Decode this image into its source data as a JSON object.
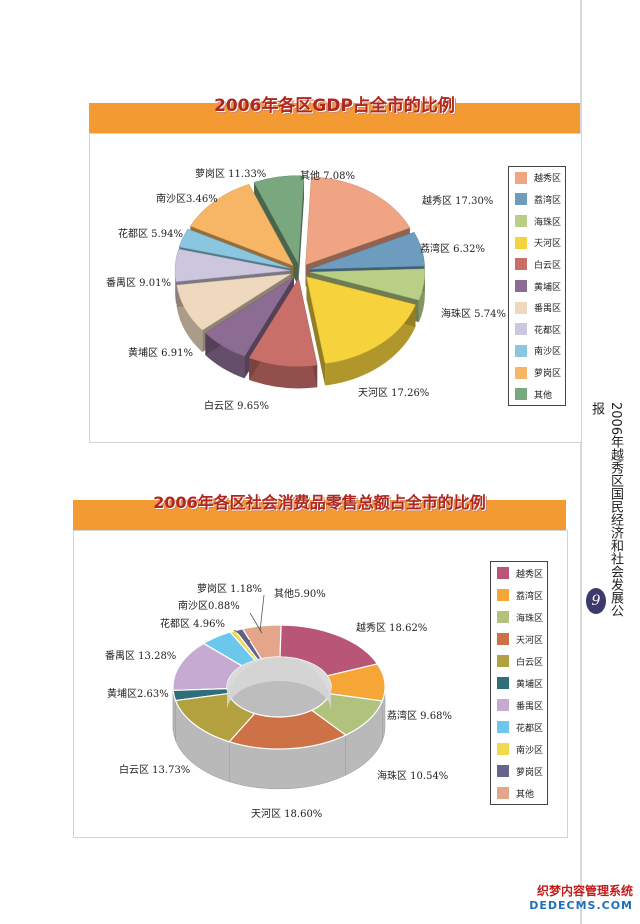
{
  "chart_data": [
    {
      "type": "pie",
      "title": "2006年各区GDP占全市的比例",
      "categories": [
        "越秀区",
        "荔湾区",
        "海珠区",
        "天河区",
        "白云区",
        "黄埔区",
        "番禺区",
        "花都区",
        "南沙区",
        "萝岗区",
        "其他"
      ],
      "values": [
        17.3,
        6.32,
        5.74,
        17.26,
        9.65,
        6.91,
        9.01,
        5.94,
        3.46,
        11.33,
        7.08
      ],
      "data_labels": [
        "越秀区 17.30%",
        "荔湾区 6.32%",
        "海珠区 5.74%",
        "天河区 17.26%",
        "白云区 9.65%",
        "黄埔区 6.91%",
        "番禺区 9.01%",
        "花都区 5.94%",
        "南沙区3.46%",
        "萝岗区 11.33%",
        "其他 7.08%"
      ],
      "colors": [
        "#f1a484",
        "#6d9cbf",
        "#b9cf86",
        "#f6d23c",
        "#c96f6a",
        "#8c6c92",
        "#eed9be",
        "#cdc7de",
        "#8bc6e1",
        "#f7b665",
        "#7aa87e"
      ],
      "legend_position": "right"
    },
    {
      "type": "pie",
      "title": "2006年各区社会消费品零售总额占全市的比例",
      "categories": [
        "越秀区",
        "荔湾区",
        "海珠区",
        "天河区",
        "白云区",
        "黄埔区",
        "番禺区",
        "花都区",
        "南沙区",
        "萝岗区",
        "其他"
      ],
      "values": [
        18.62,
        9.68,
        10.54,
        18.6,
        13.73,
        2.63,
        13.28,
        4.96,
        0.88,
        1.18,
        5.9
      ],
      "data_labels": [
        "越秀区 18.62%",
        "荔湾区 9.68%",
        "海珠区 10.54%",
        "天河区 18.60%",
        "白云区 13.73%",
        "黄埔区2.63%",
        "番禺区 13.28%",
        "花都区 4.96%",
        "南沙区0.88%",
        "萝岗区 1.18%",
        "其他5.90%"
      ],
      "colors": [
        "#b95576",
        "#f6a537",
        "#b0c27c",
        "#cd7146",
        "#b3a03f",
        "#2e6f7a",
        "#c6aad2",
        "#6cc7ed",
        "#f0da4f",
        "#66648e",
        "#e3a68a"
      ],
      "legend_position": "right"
    }
  ],
  "sidebar": {
    "report_title": "2006年越秀区国民经济和社会发展公报",
    "page_number": "9"
  },
  "watermark": {
    "line1": "织梦内容管理系统",
    "line2": "DEDECMS.COM"
  }
}
